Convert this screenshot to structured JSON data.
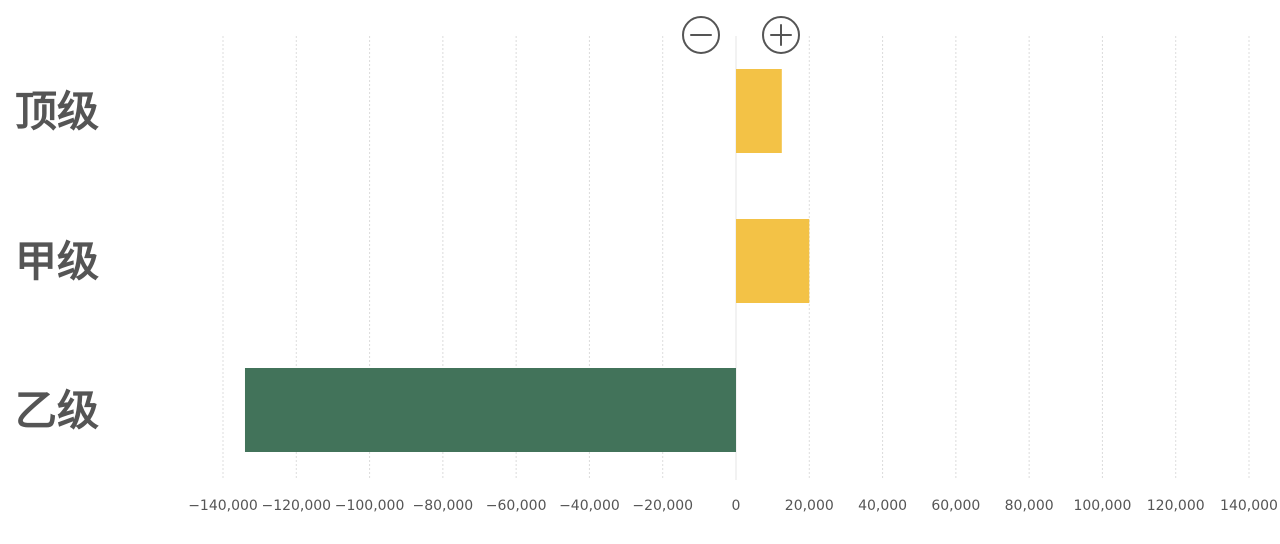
{
  "chart_data": {
    "type": "bar",
    "orientation": "horizontal",
    "categories": [
      "顶级",
      "甲级",
      "乙级"
    ],
    "values": [
      12500,
      20000,
      -134000
    ],
    "bar_colors": [
      "#F3C246",
      "#F3C246",
      "#42735A"
    ],
    "positive_color": "#F3C246",
    "negative_color": "#42735A",
    "xlim": [
      -140000,
      140000
    ],
    "x_ticks": [
      -140000,
      -120000,
      -100000,
      -80000,
      -60000,
      -40000,
      -20000,
      0,
      20000,
      40000,
      60000,
      80000,
      100000,
      120000,
      140000
    ],
    "x_tick_labels": [
      "−140,000",
      "−120,000",
      "−100,000",
      "−80,000",
      "−60,000",
      "−40,000",
      "−20,000",
      "0",
      "20,000",
      "40,000",
      "60,000",
      "80,000",
      "100,000",
      "120,000",
      "140,000"
    ],
    "grid": true,
    "title": "",
    "xlabel": "",
    "ylabel": ""
  },
  "header_icons": {
    "negative_icon": "minus-circle-icon",
    "positive_icon": "plus-circle-icon"
  }
}
